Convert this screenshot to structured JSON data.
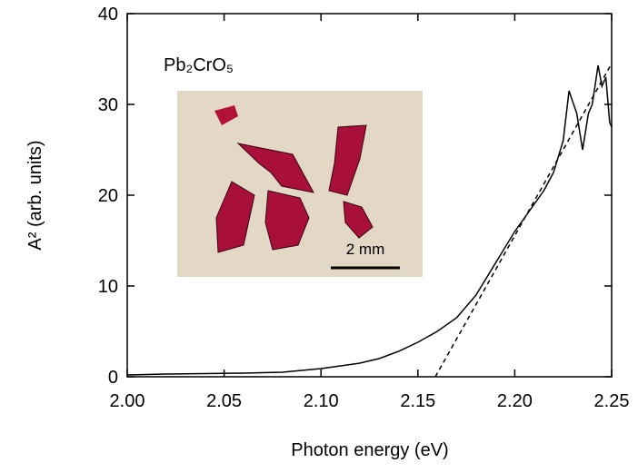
{
  "chart_data": {
    "type": "line",
    "xlabel": "Photon energy (eV)",
    "ylabel": "A² (arb. units)",
    "annotations": [
      "Pb₂CrO₅",
      "2 mm"
    ],
    "xlim": [
      2.0,
      2.25
    ],
    "xticks": [
      {
        "value": 2.0,
        "label": "2.00"
      },
      2.05,
      {
        "value": 2.1,
        "label": "2.10"
      },
      2.15,
      {
        "value": 2.2,
        "label": "2.20"
      },
      2.25
    ],
    "ylim": [
      0,
      40
    ],
    "yticks": [
      0,
      10,
      20,
      30,
      40
    ],
    "series": [
      {
        "color": "#000000",
        "dash": false,
        "x": [
          2.0,
          2.02,
          2.04,
          2.06,
          2.08,
          2.1,
          2.12,
          2.13,
          2.14,
          2.15,
          2.16,
          2.17,
          2.18,
          2.19,
          2.2,
          2.21,
          2.215,
          2.22,
          2.225,
          2.228,
          2.232,
          2.235,
          2.238,
          2.24,
          2.243,
          2.245,
          2.247,
          2.249,
          2.25
        ],
        "values": [
          0.2,
          0.3,
          0.35,
          0.4,
          0.5,
          0.9,
          1.5,
          2.0,
          2.8,
          3.8,
          5.0,
          6.5,
          9.0,
          12.5,
          16.0,
          19.0,
          20.5,
          22.5,
          26.0,
          31.5,
          29.0,
          25.0,
          29.0,
          30.0,
          34.3,
          32.0,
          33.0,
          28.0,
          27.5
        ]
      },
      {
        "color": "#000000",
        "dash": true,
        "x": [
          2.159,
          2.25
        ],
        "values": [
          0,
          34.5
        ]
      }
    ]
  }
}
